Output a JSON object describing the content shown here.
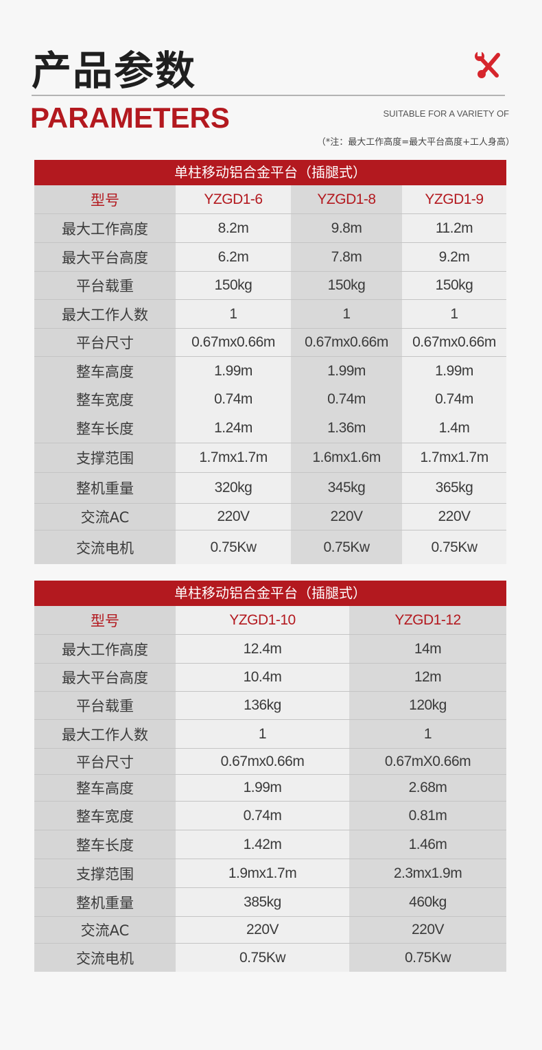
{
  "header": {
    "title": "产品参数",
    "subtitle": "PARAMETERS",
    "tagline": "SUITABLE FOR A VARIETY OF",
    "note": "（*注：最大工作高度=最大平台高度+工人身高）",
    "icon": "wrench-screwdriver-icon",
    "accent": "#b3191f"
  },
  "tables": [
    {
      "title": "单柱移动铝合金平台（插腿式）",
      "model_label": "型号",
      "models": [
        "YZGD1-6",
        "YZGD1-8",
        "YZGD1-9"
      ],
      "rows": [
        {
          "label": "最大工作高度",
          "values": [
            "8.2m",
            "9.8m",
            "11.2m"
          ]
        },
        {
          "label": "最大平台高度",
          "values": [
            "6.2m",
            "7.8m",
            "9.2m"
          ]
        },
        {
          "label": "平台载重",
          "values": [
            "150kg",
            "150kg",
            "150kg"
          ]
        },
        {
          "label": "最大工作人数",
          "values": [
            "1",
            "1",
            "1"
          ]
        },
        {
          "label": "平台尺寸",
          "values": [
            "0.67mx0.66m",
            "0.67mx0.66m",
            "0.67mx0.66m"
          ]
        },
        {
          "label": "整车高度",
          "values": [
            "1.99m",
            "1.99m",
            "1.99m"
          ]
        },
        {
          "label": "整车宽度",
          "values": [
            "0.74m",
            "0.74m",
            "0.74m"
          ]
        },
        {
          "label": "整车长度",
          "values": [
            "1.24m",
            "1.36m",
            "1.4m"
          ]
        },
        {
          "label": "支撑范围",
          "values": [
            "1.7mx1.7m",
            "1.6mx1.6m",
            "1.7mx1.7m"
          ]
        },
        {
          "label": "整机重量",
          "values": [
            "320kg",
            "345kg",
            "365kg"
          ]
        },
        {
          "label": "交流AC",
          "values": [
            "220V",
            "220V",
            "220V"
          ]
        },
        {
          "label": "交流电机",
          "values": [
            "0.75Kw",
            "0.75Kw",
            "0.75Kw"
          ]
        }
      ]
    },
    {
      "title": "单柱移动铝合金平台（插腿式）",
      "model_label": "型号",
      "models": [
        "YZGD1-10",
        "YZGD1-12"
      ],
      "rows": [
        {
          "label": "最大工作高度",
          "values": [
            "12.4m",
            "14m"
          ]
        },
        {
          "label": "最大平台高度",
          "values": [
            "10.4m",
            "12m"
          ]
        },
        {
          "label": "平台载重",
          "values": [
            "136kg",
            "120kg"
          ]
        },
        {
          "label": "最大工作人数",
          "values": [
            "1",
            "1"
          ]
        },
        {
          "label": "平台尺寸",
          "values": [
            "0.67mx0.66m",
            "0.67mX0.66m"
          ]
        },
        {
          "label": "整车高度",
          "values": [
            "1.99m",
            "2.68m"
          ]
        },
        {
          "label": "整车宽度",
          "values": [
            "0.74m",
            "0.81m"
          ]
        },
        {
          "label": "整车长度",
          "values": [
            "1.42m",
            "1.46m"
          ]
        },
        {
          "label": "支撑范围",
          "values": [
            "1.9mx1.7m",
            "2.3mx1.9m"
          ]
        },
        {
          "label": "整机重量",
          "values": [
            "385kg",
            "460kg"
          ]
        },
        {
          "label": "交流AC",
          "values": [
            "220V",
            "220V"
          ]
        },
        {
          "label": "交流电机",
          "values": [
            "0.75Kw",
            "0.75Kw"
          ]
        }
      ]
    }
  ]
}
